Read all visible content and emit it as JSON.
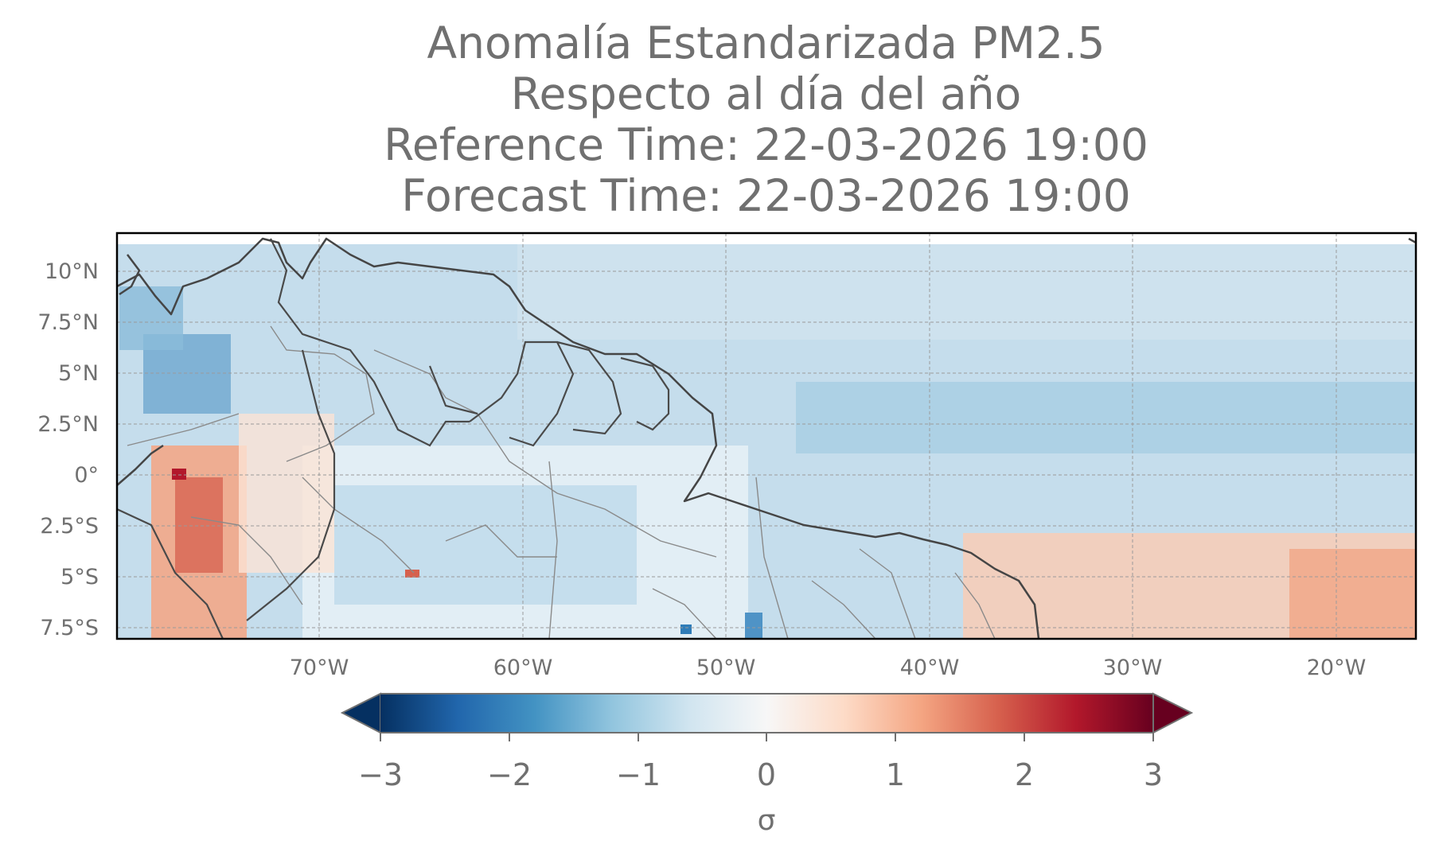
{
  "title": {
    "line1": "Anomalía Estandarizada PM2.5",
    "line2": "Respecto al día del año",
    "line3": "Reference Time: 22-03-2026 19:00",
    "line4": "Forecast Time: 22-03-2026 19:00"
  },
  "map": {
    "variable": "PM2.5 standardized anomaly",
    "lon_range": [
      -80,
      -16
    ],
    "lat_range": [
      -8,
      11
    ],
    "lon_ticks": [
      "70°W",
      "60°W",
      "50°W",
      "40°W",
      "30°W",
      "20°W"
    ],
    "lon_tick_values": [
      -70,
      -60,
      -50,
      -40,
      -30,
      -20
    ],
    "lat_ticks": [
      "10°N",
      "7.5°N",
      "5°N",
      "2.5°N",
      "0°",
      "2.5°S",
      "5°S",
      "7.5°S"
    ],
    "lat_tick_values": [
      10,
      7.5,
      5,
      2.5,
      0,
      -2.5,
      -5,
      -7.5
    ],
    "gridlines": true
  },
  "colorbar": {
    "cmap": "RdBu_r",
    "extend": "both",
    "range": [
      -3,
      3
    ],
    "ticks": [
      "−3",
      "−2",
      "−1",
      "0",
      "1",
      "2",
      "3"
    ],
    "tick_values": [
      -3,
      -2,
      -1,
      0,
      1,
      2,
      3
    ],
    "label": "σ"
  },
  "colors": {
    "text": "#707070",
    "ocean_base": "#c3dcec",
    "coast": "#404040",
    "borders": "#8a8a8a"
  }
}
